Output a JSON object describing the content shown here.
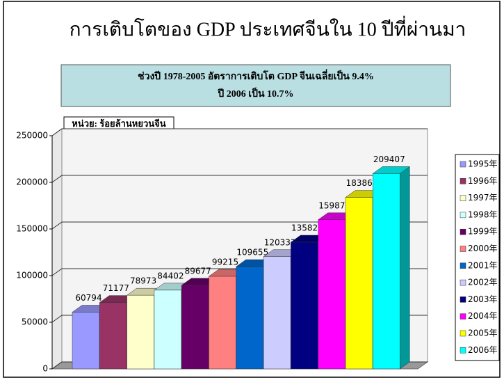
{
  "chart_data": {
    "type": "bar",
    "title": "การเติบโตของ GDP ประเทศจีนใน 10 ปีที่ผ่านมา",
    "annotations": [
      "ช่วงปี 1978-2005  อัตราการเติบโต GDP จีนเฉลี่ยเป็น 9.4%",
      "ปี  2006 เป็น 10.7%"
    ],
    "unit_label": "หน่วย: ร้อยล้านหยวนจีน",
    "ylim": [
      0,
      250000
    ],
    "yticks": [
      0,
      50000,
      100000,
      150000,
      200000,
      250000
    ],
    "grid": true,
    "legend": "right",
    "series": [
      {
        "name": "1995年",
        "color": "#9999ff",
        "values": [
          60794
        ]
      },
      {
        "name": "1996年",
        "color": "#993366",
        "values": [
          71177
        ]
      },
      {
        "name": "1997年",
        "color": "#ffffcc",
        "values": [
          78973
        ]
      },
      {
        "name": "1998年",
        "color": "#ccffff",
        "values": [
          84402
        ]
      },
      {
        "name": "1999年",
        "color": "#660066",
        "values": [
          89677
        ]
      },
      {
        "name": "2000年",
        "color": "#ff8080",
        "values": [
          99215
        ]
      },
      {
        "name": "2001年",
        "color": "#0066cc",
        "values": [
          109655
        ]
      },
      {
        "name": "2002年",
        "color": "#ccccff",
        "values": [
          120333
        ]
      },
      {
        "name": "2003年",
        "color": "#000080",
        "values": [
          135823
        ]
      },
      {
        "name": "2004年",
        "color": "#ff00ff",
        "values": [
          159878
        ]
      },
      {
        "name": "2005年",
        "color": "#ffff00",
        "values": [
          183868
        ]
      },
      {
        "name": "2006年",
        "color": "#00ffff",
        "values": [
          209407
        ]
      }
    ]
  }
}
